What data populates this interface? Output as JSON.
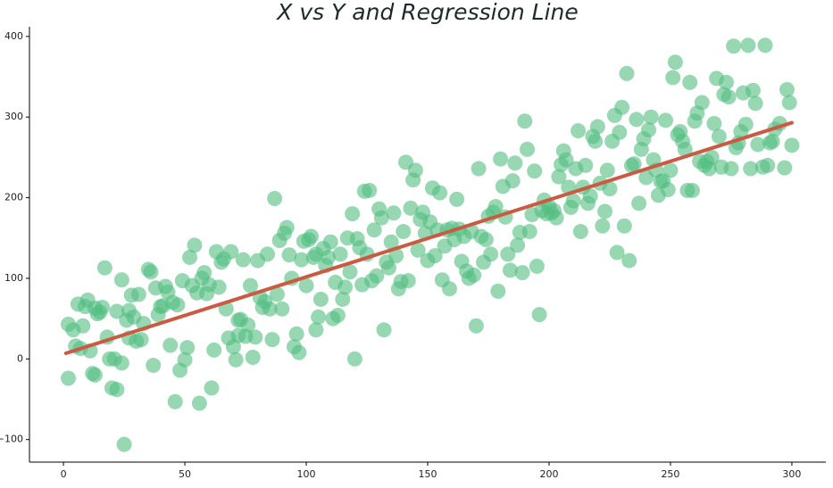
{
  "chart_data": {
    "type": "scatter",
    "title": "X vs Y and Regression Line",
    "x": [
      2,
      2,
      4,
      5,
      6,
      7,
      8,
      9,
      10,
      11,
      12,
      13,
      13,
      14,
      15,
      16,
      17,
      18,
      19,
      20,
      21,
      22,
      22,
      24,
      24,
      25,
      26,
      27,
      27,
      28,
      29,
      30,
      31,
      32,
      33,
      35,
      36,
      37,
      38,
      39,
      40,
      41,
      42,
      43,
      44,
      45,
      46,
      47,
      48,
      49,
      50,
      51,
      52,
      53,
      54,
      55,
      56,
      57,
      58,
      59,
      60,
      61,
      62,
      63,
      64,
      65,
      66,
      67,
      68,
      69,
      70,
      71,
      72,
      72,
      73,
      74,
      75,
      76,
      77,
      78,
      79,
      80,
      81,
      82,
      83,
      84,
      85,
      86,
      87,
      88,
      89,
      90,
      91,
      92,
      93,
      94,
      95,
      96,
      97,
      98,
      99,
      100,
      101,
      102,
      103,
      104,
      104,
      105,
      106,
      107,
      108,
      109,
      110,
      111,
      112,
      113,
      114,
      115,
      116,
      117,
      118,
      119,
      120,
      121,
      122,
      123,
      124,
      125,
      126,
      127,
      128,
      129,
      130,
      131,
      132,
      133,
      134,
      135,
      136,
      137,
      138,
      139,
      140,
      141,
      142,
      143,
      144,
      145,
      146,
      147,
      148,
      149,
      150,
      151,
      152,
      153,
      154,
      155,
      156,
      157,
      158,
      159,
      160,
      161,
      162,
      163,
      164,
      165,
      166,
      167,
      168,
      169,
      170,
      171,
      172,
      173,
      174,
      175,
      176,
      177,
      178,
      179,
      180,
      181,
      182,
      183,
      184,
      185,
      186,
      187,
      188,
      189,
      190,
      191,
      192,
      193,
      194,
      195,
      196,
      197,
      198,
      199,
      200,
      201,
      202,
      203,
      204,
      205,
      206,
      207,
      208,
      209,
      210,
      211,
      212,
      213,
      214,
      215,
      216,
      217,
      218,
      219,
      220,
      221,
      222,
      223,
      224,
      225,
      226,
      227,
      228,
      229,
      230,
      231,
      232,
      233,
      234,
      235,
      236,
      237,
      238,
      239,
      240,
      241,
      242,
      243,
      244,
      245,
      246,
      247,
      248,
      249,
      250,
      251,
      252,
      253,
      254,
      255,
      256,
      257,
      258,
      259,
      260,
      261,
      262,
      263,
      264,
      265,
      266,
      267,
      268,
      269,
      270,
      271,
      272,
      273,
      274,
      275,
      276,
      277,
      278,
      279,
      280,
      281,
      282,
      283,
      284,
      285,
      286,
      288,
      290,
      291,
      292,
      293,
      295,
      297,
      298,
      299,
      300,
      289
    ],
    "values": [
      43,
      -24,
      36,
      16,
      68,
      13,
      41,
      65,
      73,
      10,
      -18,
      -20,
      63,
      56,
      58,
      64,
      113,
      27,
      0,
      -36,
      0,
      59,
      -38,
      -5,
      98,
      -106,
      48,
      60,
      26,
      79,
      52,
      22,
      80,
      24,
      44,
      111,
      108,
      -8,
      88,
      55,
      65,
      66,
      90,
      83,
      17,
      70,
      -53,
      67,
      -14,
      97,
      -1,
      14,
      126,
      91,
      141,
      82,
      -55,
      100,
      107,
      81,
      92,
      -36,
      11,
      133,
      89,
      120,
      124,
      62,
      26,
      133,
      15,
      -1,
      29,
      48,
      49,
      123,
      28,
      42,
      91,
      2,
      27,
      122,
      76,
      64,
      71,
      130,
      62,
      24,
      199,
      80,
      147,
      62,
      156,
      163,
      129,
      100,
      15,
      31,
      8,
      123,
      146,
      91,
      148,
      152,
      126,
      130,
      36,
      52,
      74,
      137,
      116,
      126,
      145,
      50,
      95,
      54,
      130,
      74,
      89,
      150,
      108,
      180,
      0,
      149,
      138,
      92,
      208,
      130,
      209,
      97,
      160,
      103,
      186,
      175,
      36,
      120,
      113,
      145,
      181,
      128,
      87,
      96,
      158,
      244,
      97,
      187,
      222,
      234,
      135,
      173,
      182,
      156,
      122,
      170,
      212,
      128,
      160,
      206,
      98,
      140,
      160,
      87,
      162,
      148,
      198,
      161,
      121,
      152,
      109,
      100,
      158,
      104,
      41,
      236,
      152,
      120,
      148,
      177,
      130,
      182,
      189,
      84,
      248,
      214,
      176,
      130,
      110,
      221,
      243,
      141,
      157,
      107,
      295,
      260,
      158,
      179,
      233,
      115,
      55,
      184,
      197,
      180,
      189,
      181,
      184,
      175,
      226,
      241,
      258,
      247,
      213,
      188,
      196,
      236,
      283,
      158,
      213,
      240,
      193,
      202,
      276,
      270,
      288,
      218,
      165,
      183,
      234,
      211,
      270,
      302,
      132,
      281,
      312,
      165,
      354,
      122,
      240,
      242,
      297,
      193,
      260,
      273,
      225,
      284,
      300,
      247,
      234,
      203,
      220,
      221,
      296,
      210,
      234,
      349,
      368,
      278,
      282,
      270,
      260,
      209,
      343,
      209,
      295,
      305,
      245,
      318,
      240,
      245,
      236,
      250,
      292,
      348,
      276,
      238,
      328,
      343,
      325,
      236,
      388,
      262,
      268,
      282,
      330,
      291,
      389,
      236,
      333,
      317,
      266,
      238,
      240,
      268,
      270,
      285,
      292,
      237,
      334,
      318,
      265,
      389
    ],
    "color": "#52be80",
    "regression": {
      "x": [
        1,
        300
      ],
      "values": [
        7,
        293
      ],
      "color": "#cb5a43"
    },
    "xlim": [
      -14,
      314
    ],
    "ylim": [
      -128,
      412
    ],
    "xticks": [
      0,
      50,
      100,
      150,
      200,
      250,
      300
    ],
    "yticks": [
      {
        "value": -100,
        "label": "−100"
      },
      0,
      100,
      200,
      300,
      400
    ],
    "grid": false
  }
}
